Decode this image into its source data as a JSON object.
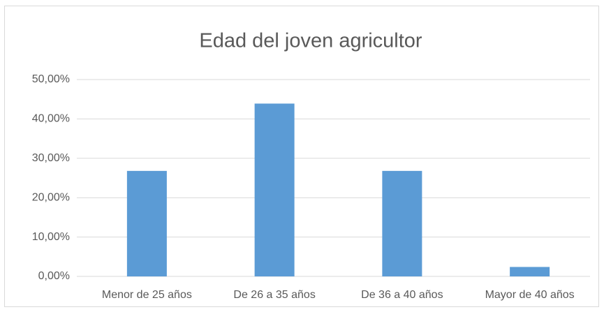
{
  "chart_data": {
    "type": "bar",
    "title": "Edad del joven agricultor",
    "categories": [
      "Menor de 25 años",
      "De 26 a 35 años",
      "De 36 a 40 años",
      "Mayor de 40 años"
    ],
    "values": [
      26.8,
      43.9,
      26.8,
      2.4
    ],
    "color": "#5b9bd5",
    "ylim": [
      0,
      50
    ],
    "yticks": [
      {
        "value": 0,
        "label": "0,00%"
      },
      {
        "value": 10,
        "label": "10,00%"
      },
      {
        "value": 20,
        "label": "20,00%"
      },
      {
        "value": 30,
        "label": "30,00%"
      },
      {
        "value": 40,
        "label": "40,00%"
      },
      {
        "value": 50,
        "label": "50,00%"
      }
    ],
    "grid": true
  }
}
